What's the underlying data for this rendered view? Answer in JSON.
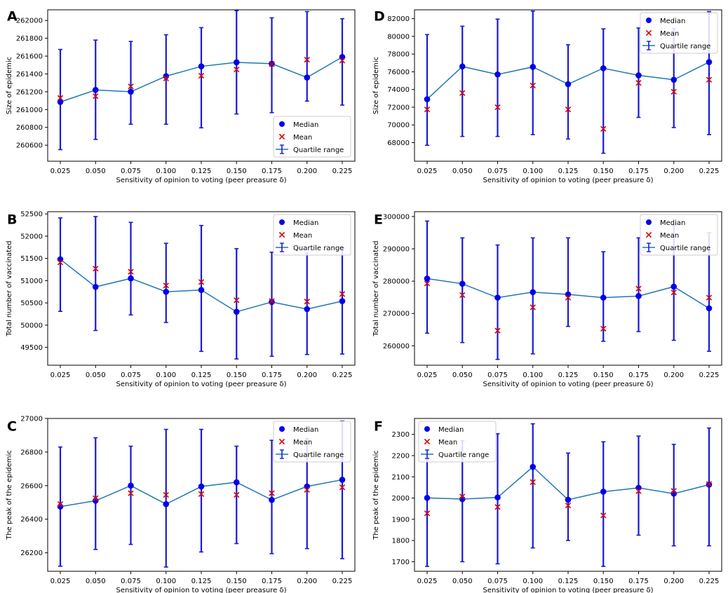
{
  "figure": {
    "x_values": [
      "0.025",
      "0.050",
      "0.075",
      "0.100",
      "0.125",
      "0.150",
      "0.175",
      "0.200",
      "0.225"
    ],
    "xlabel": "Sensitivity of opinion to voting (peer preasure δ)",
    "legend": {
      "median": "Median",
      "mean": "Mean",
      "range": "Quartile range"
    }
  },
  "colors": {
    "median": "#0000ee",
    "mean": "#dd0000",
    "line": "#1f77b4",
    "errorbar": "#1a1ad6"
  },
  "chart_data": [
    {
      "panel": "A",
      "type": "line",
      "ylabel": "Size of epidemic",
      "xlabel": "Sensitivity of opinion to voting (peer preasure δ)",
      "ylim": [
        260420,
        262120
      ],
      "yticks": [
        260600,
        260800,
        261000,
        261200,
        261400,
        261600,
        261800,
        262000
      ],
      "legend_position": "lower-right",
      "median": [
        261085,
        261220,
        261200,
        261375,
        261485,
        261530,
        261515,
        261360,
        261590
      ],
      "mean": [
        261130,
        261150,
        261260,
        261350,
        261380,
        261450,
        261510,
        261560,
        261550
      ],
      "q1": [
        260550,
        260665,
        260835,
        260835,
        260795,
        260950,
        260965,
        261095,
        261050
      ],
      "q3": [
        261675,
        261780,
        261765,
        261840,
        261920,
        262110,
        262030,
        262100,
        262020
      ]
    },
    {
      "panel": "B",
      "type": "line",
      "ylabel": "Total number of vaccinated",
      "xlabel": "Sensitivity of opinion to voting (peer preasure δ)",
      "ylim": [
        49100,
        52550
      ],
      "yticks": [
        49500,
        50000,
        50500,
        51000,
        51500,
        52000,
        52500
      ],
      "legend_position": "top-right",
      "median": [
        51480,
        50860,
        51050,
        50750,
        50790,
        50300,
        50520,
        50360,
        50540
      ],
      "mean": [
        51410,
        51270,
        51200,
        50890,
        50970,
        50560,
        50540,
        50530,
        50700
      ],
      "q1": [
        50310,
        49880,
        50230,
        50060,
        49410,
        49240,
        49300,
        49340,
        49350
      ],
      "q3": [
        52410,
        52440,
        52310,
        51840,
        52240,
        51720,
        51640,
        51620,
        51730
      ]
    },
    {
      "panel": "C",
      "type": "line",
      "ylabel": "The peak of the epidemic",
      "xlabel": "Sensitivity of opinion to voting (peer preasure δ)",
      "ylim": [
        26090,
        27000
      ],
      "yticks": [
        26200,
        26400,
        26600,
        26800,
        27000
      ],
      "legend_position": "top-right",
      "median": [
        26475,
        26510,
        26600,
        26490,
        26595,
        26620,
        26515,
        26595,
        26635
      ],
      "mean": [
        26490,
        26525,
        26555,
        26545,
        26550,
        26545,
        26555,
        26575,
        26590
      ],
      "q1": [
        26120,
        26220,
        26250,
        26115,
        26205,
        26255,
        26195,
        26225,
        26165
      ],
      "q3": [
        26830,
        26885,
        26835,
        26935,
        26935,
        26835,
        26870,
        26880,
        26985
      ]
    },
    {
      "panel": "D",
      "type": "line",
      "ylabel": "Size of epidemic",
      "xlabel": "Sensitivity of opinion to voting (peer preasure δ)",
      "ylim": [
        65900,
        83000
      ],
      "yticks": [
        68000,
        70000,
        72000,
        74000,
        76000,
        78000,
        80000,
        82000
      ],
      "legend_position": "top-right",
      "median": [
        72900,
        76600,
        75700,
        76550,
        74600,
        76400,
        75600,
        75100,
        77100
      ],
      "mean": [
        71750,
        73600,
        72000,
        74450,
        71750,
        69550,
        74750,
        73750,
        75100
      ],
      "q1": [
        67700,
        68700,
        68700,
        68900,
        68400,
        66800,
        70850,
        69700,
        68900
      ],
      "q3": [
        80200,
        81150,
        81950,
        82850,
        79050,
        80850,
        80950,
        80900,
        82800
      ]
    },
    {
      "panel": "E",
      "type": "line",
      "ylabel": "Total number of vaccinated",
      "xlabel": "Sensitivity of opinion to voting (peer preasure δ)",
      "ylim": [
        254000,
        301500
      ],
      "yticks": [
        260000,
        270000,
        280000,
        290000,
        300000
      ],
      "legend_position": "top-right",
      "median": [
        280800,
        279200,
        274900,
        276600,
        275900,
        274900,
        275400,
        278300,
        271600
      ],
      "mean": [
        279300,
        275700,
        264700,
        271900,
        274900,
        265300,
        277700,
        276500,
        274900
      ],
      "q1": [
        263900,
        261000,
        255800,
        257500,
        266000,
        261400,
        264400,
        261700,
        258300
      ],
      "q3": [
        298600,
        293400,
        291200,
        293400,
        293400,
        289100,
        293400,
        297300,
        295000
      ]
    },
    {
      "panel": "F",
      "type": "line",
      "ylabel": "The peak of the epidemic",
      "xlabel": "Sensitivity of opinion to voting (peer preasure δ)",
      "ylim": [
        1655,
        2375
      ],
      "yticks": [
        1700,
        1800,
        1900,
        2000,
        2100,
        2200,
        2300
      ],
      "legend_position": "top-left",
      "median": [
        2001,
        1995,
        2003,
        2147,
        1992,
        2030,
        2048,
        2021,
        2063
      ],
      "mean": [
        1928,
        2007,
        1958,
        2075,
        1965,
        1918,
        2033,
        2034,
        2066
      ],
      "q1": [
        1678,
        1700,
        1690,
        1765,
        1800,
        1678,
        1825,
        1775,
        1775
      ],
      "q3": [
        2180,
        2270,
        2303,
        2350,
        2212,
        2265,
        2292,
        2253,
        2330
      ]
    }
  ]
}
